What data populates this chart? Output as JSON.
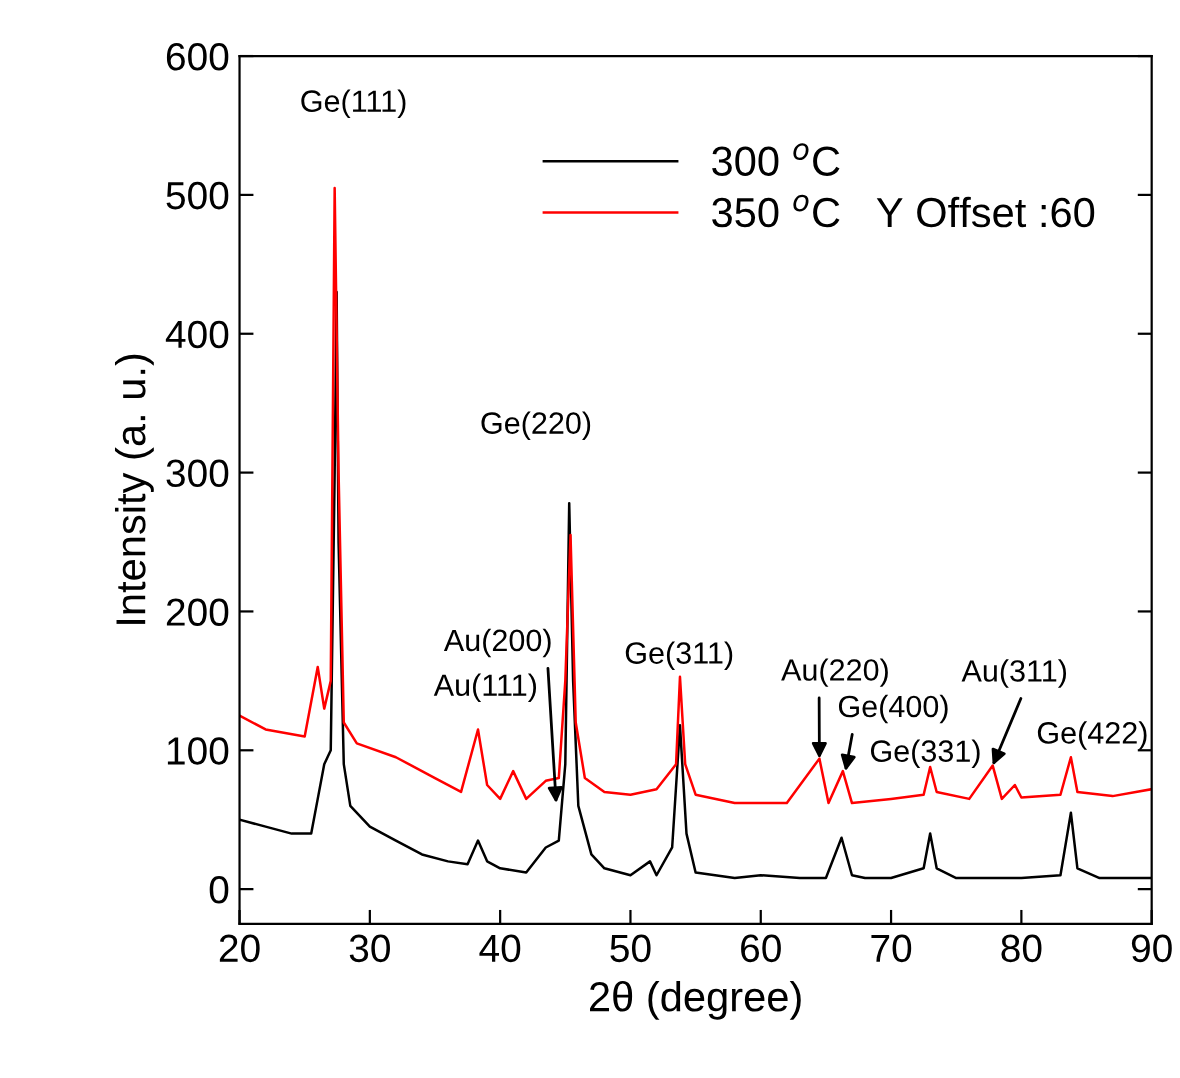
{
  "chart_data": {
    "type": "line",
    "xlabel": "2θ (degree)",
    "ylabel": "Intensity (a. u.)",
    "xlim": [
      20,
      90
    ],
    "xticks": [
      20,
      30,
      40,
      50,
      60,
      70,
      80,
      90
    ],
    "ylim": [
      -25,
      600
    ],
    "yticks": [
      0,
      100,
      200,
      300,
      400,
      500,
      600
    ],
    "grid": false,
    "legend": "top right",
    "marker": "none",
    "line_style": "solid",
    "series": [
      {
        "name": "300 $^{o}$C",
        "color": "#000000",
        "x": [
          20,
          22,
          24,
          25.5,
          26,
          26.5,
          27,
          27.3,
          27.45,
          27.6,
          28,
          28.5,
          30,
          32,
          34,
          36,
          37.5,
          38.3,
          39,
          40,
          42,
          43.5,
          44.5,
          45,
          45.3,
          45.6,
          46,
          47,
          48,
          50,
          51.5,
          52,
          53.2,
          53.8,
          54.3,
          55,
          58,
          60,
          63,
          65,
          66.2,
          67,
          68,
          70,
          72.5,
          73,
          73.5,
          75,
          78,
          80,
          83,
          83.8,
          84.3,
          86,
          90
        ],
        "values": [
          50,
          45,
          40,
          40,
          65,
          90,
          100,
          300,
          430,
          250,
          90,
          60,
          45,
          35,
          25,
          20,
          18,
          35,
          20,
          15,
          12,
          30,
          35,
          90,
          278,
          150,
          60,
          25,
          15,
          10,
          20,
          10,
          30,
          118,
          40,
          12,
          8,
          10,
          8,
          8,
          37,
          10,
          8,
          8,
          15,
          40,
          15,
          8,
          8,
          8,
          10,
          55,
          15,
          8,
          8
        ]
      },
      {
        "name": "350 $^{o}$C   Y Offset :60",
        "color": "#ff0000",
        "x": [
          20,
          22,
          25,
          26,
          26.5,
          27,
          27.3,
          27.6,
          28,
          29,
          32,
          35,
          37,
          38.3,
          39,
          40,
          41,
          42,
          43.5,
          44.5,
          45,
          45.4,
          45.8,
          46.5,
          48,
          50,
          52,
          53.5,
          53.8,
          54.2,
          55,
          58,
          62,
          64.5,
          65.2,
          66.3,
          67,
          70,
          72.5,
          73,
          73.5,
          76,
          77.8,
          78.5,
          79.5,
          80,
          83,
          83.8,
          84.3,
          87,
          90
        ],
        "values": [
          125,
          115,
          110,
          160,
          130,
          150,
          505,
          300,
          120,
          105,
          95,
          80,
          70,
          115,
          75,
          65,
          85,
          65,
          78,
          80,
          150,
          255,
          120,
          80,
          70,
          68,
          72,
          90,
          153,
          90,
          68,
          62,
          62,
          94,
          62,
          85,
          62,
          65,
          68,
          88,
          70,
          65,
          89,
          65,
          75,
          66,
          68,
          95,
          70,
          67,
          72
        ]
      }
    ],
    "annotations": [
      "Ge(111)",
      "Ge(220)",
      {
        "text": "Au(200)",
        "x": 44.3,
        "y": 62
      },
      "Au(111)",
      "Ge(311)",
      {
        "text": "Au(220)",
        "x": 64.5,
        "y": 94
      },
      {
        "text": "Ge(400)",
        "x": 66.5,
        "y": 85
      },
      "Ge(331)",
      {
        "text": "Au(311)",
        "x": 77.8,
        "y": 89
      },
      "Ge(422)"
    ]
  }
}
